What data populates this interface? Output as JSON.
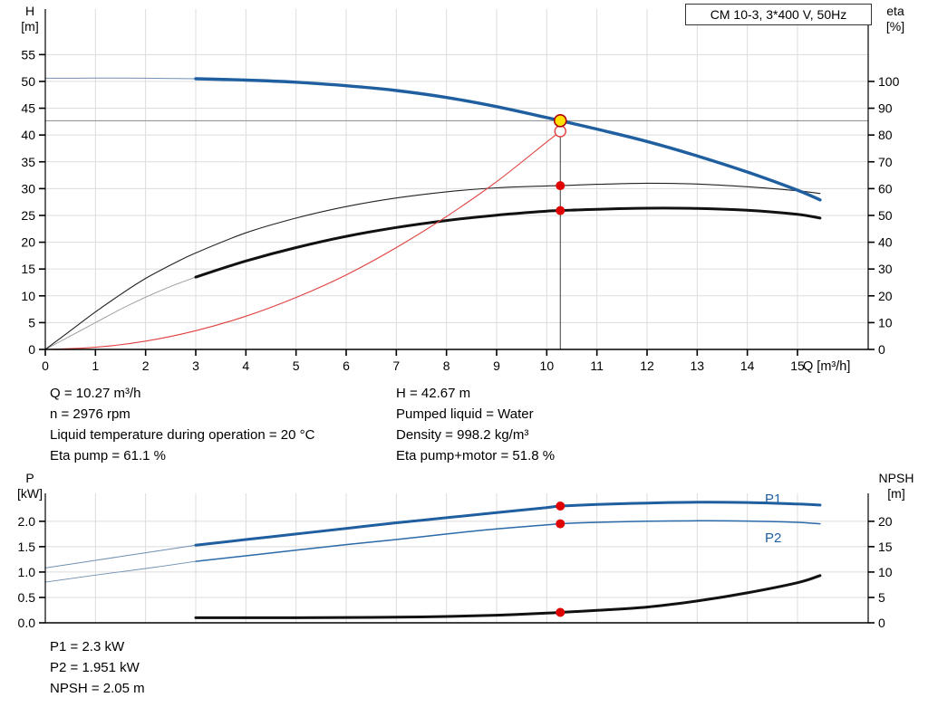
{
  "title_box": "CM 10-3, 3*400 V, 50Hz",
  "annotations": {
    "top_left": [
      "Q = 10.27 m³/h",
      "n = 2976 rpm",
      "Liquid temperature during operation = 20 °C",
      "Eta pump = 61.1 %"
    ],
    "top_right": [
      "H = 42.67 m",
      "Pumped liquid = Water",
      "Density = 998.2 kg/m³",
      "Eta pump+motor = 51.8 %"
    ],
    "bottom": [
      "P1 = 2.3 kW",
      "P2 = 1.951 kW",
      "NPSH = 2.05 m"
    ]
  },
  "chart_data": [
    {
      "type": "line",
      "name": "qh-eta-chart",
      "title": "CM 10-3, 3*400 V, 50Hz",
      "duty_point": {
        "Q_m3h": 10.27,
        "H_m": 42.67,
        "eta_pump_pct": 61.1,
        "eta_pump_motor_pct": 51.8
      },
      "x": {
        "label": "Q [m³/h]",
        "min": 0,
        "max": 16.41,
        "tick_values": [
          0,
          1,
          2,
          3,
          4,
          5,
          6,
          7,
          8,
          9,
          10,
          11,
          12,
          13,
          14,
          15
        ],
        "tick_labels": [
          "0",
          "1",
          "2",
          "3",
          "4",
          "5",
          "6",
          "7",
          "8",
          "9",
          "10",
          "11",
          "12",
          "13",
          "14",
          "15"
        ],
        "show_tick_labels": true
      },
      "y_left": {
        "label": "H [m]",
        "label_lines": [
          "H",
          "[m]"
        ],
        "min": 0,
        "max": 63.5,
        "tick_values": [
          0,
          5,
          10,
          15,
          20,
          25,
          30,
          35,
          40,
          45,
          50,
          55
        ],
        "tick_labels": [
          "0",
          "5",
          "10",
          "15",
          "20",
          "25",
          "30",
          "35",
          "40",
          "45",
          "50",
          "55"
        ]
      },
      "y_right": {
        "label": "eta [%]",
        "label_lines": [
          "eta",
          "[%]"
        ],
        "min": 0,
        "max": 127,
        "to_left_factor": 0.5,
        "tick_values": [
          0,
          10,
          20,
          30,
          40,
          50,
          60,
          70,
          80,
          90,
          100
        ],
        "tick_labels": [
          "0",
          "10",
          "20",
          "30",
          "40",
          "50",
          "60",
          "70",
          "80",
          "90",
          "100"
        ]
      },
      "grid": true,
      "ref_lines": [
        {
          "type": "h",
          "v": 42.67,
          "x1": 0,
          "x2": 16.41,
          "color": "#8a8a8a",
          "w": 1
        },
        {
          "type": "v",
          "q": 10.27,
          "v1": 0,
          "v2": 42.67,
          "color": "#3a3a3a",
          "w": 1
        }
      ],
      "series": [
        {
          "name": "eta-pump-motor-extension",
          "axis": "right",
          "color": "#9a9a9a",
          "w": 0.9,
          "pts": [
            [
              0,
              0
            ],
            [
              0.5,
              5
            ],
            [
              1,
              10
            ],
            [
              1.5,
              15
            ],
            [
              2,
              19.5
            ],
            [
              2.5,
              23.5
            ],
            [
              3,
              27
            ]
          ]
        },
        {
          "name": "eta-pump-curve",
          "axis": "right",
          "color": "#222222",
          "w": 1.1,
          "pts": [
            [
              0,
              0
            ],
            [
              0.5,
              7
            ],
            [
              1,
              14
            ],
            [
              1.5,
              20.5
            ],
            [
              2,
              26.5
            ],
            [
              2.5,
              31.5
            ],
            [
              3,
              36
            ],
            [
              4,
              43.5
            ],
            [
              5,
              49
            ],
            [
              6,
              53.3
            ],
            [
              7,
              56.5
            ],
            [
              8,
              58.8
            ],
            [
              9,
              60.3
            ],
            [
              10,
              61.0
            ],
            [
              10.27,
              61.1
            ],
            [
              11,
              61.6
            ],
            [
              12,
              62.0
            ],
            [
              13,
              61.7
            ],
            [
              14,
              60.7
            ],
            [
              15,
              59.2
            ],
            [
              15.45,
              58.2
            ]
          ]
        },
        {
          "name": "eta-pump-motor-curve",
          "axis": "right",
          "color": "#111111",
          "w": 3,
          "pts": [
            [
              3,
              27
            ],
            [
              4,
              33
            ],
            [
              5,
              38
            ],
            [
              6,
              42.2
            ],
            [
              7,
              45.5
            ],
            [
              8,
              48.1
            ],
            [
              9,
              50.1
            ],
            [
              10,
              51.6
            ],
            [
              10.27,
              51.8
            ],
            [
              11,
              52.3
            ],
            [
              12,
              52.7
            ],
            [
              13,
              52.6
            ],
            [
              14,
              51.9
            ],
            [
              15,
              50.4
            ],
            [
              15.45,
              49.0
            ]
          ]
        },
        {
          "name": "system-curve",
          "axis": "left",
          "color": "#e04040",
          "w": 1.1,
          "pts": [
            [
              0,
              0
            ],
            [
              1,
              0.4
            ],
            [
              2,
              1.55
            ],
            [
              3,
              3.5
            ],
            [
              4,
              6.2
            ],
            [
              5,
              9.7
            ],
            [
              6,
              13.9
            ],
            [
              7,
              19.0
            ],
            [
              8,
              24.8
            ],
            [
              9,
              31.3
            ],
            [
              10,
              38.7
            ],
            [
              10.27,
              40.7
            ]
          ]
        },
        {
          "name": "qh-curve-extension",
          "axis": "left",
          "color": "#6f8fb3",
          "w": 1,
          "pts": [
            [
              0,
              50.6
            ],
            [
              1,
              50.62
            ],
            [
              2,
              50.6
            ],
            [
              3,
              50.5
            ]
          ]
        },
        {
          "name": "qh-curve",
          "axis": "left",
          "color": "#1f5fa0",
          "w": 3.4,
          "pts": [
            [
              3,
              50.5
            ],
            [
              4,
              50.25
            ],
            [
              5,
              49.85
            ],
            [
              6,
              49.2
            ],
            [
              7,
              48.3
            ],
            [
              8,
              47.0
            ],
            [
              9,
              45.3
            ],
            [
              10,
              43.25
            ],
            [
              10.27,
              42.67
            ],
            [
              11,
              41.1
            ],
            [
              12,
              38.8
            ],
            [
              13,
              36.1
            ],
            [
              14,
              33.1
            ],
            [
              15,
              29.7
            ],
            [
              15.45,
              27.9
            ]
          ]
        }
      ],
      "markers": [
        {
          "name": "system-curve-intersection",
          "q": 10.27,
          "v": 40.7,
          "axis": "left",
          "r": 6,
          "fill": "#ffffff",
          "stroke": "#e04040",
          "sw": 1.4,
          "interactable": false
        },
        {
          "name": "duty-point",
          "q": 10.27,
          "v": 42.67,
          "axis": "left",
          "r": 6.5,
          "fill": "#ffe000",
          "stroke": "#b00000",
          "sw": 1.6,
          "interactable": true
        },
        {
          "name": "eta-pump-duty-dot",
          "q": 10.27,
          "v": 61.1,
          "axis": "right",
          "r": 5,
          "fill": "#e00000",
          "stroke": "none",
          "sw": 0,
          "interactable": false
        },
        {
          "name": "eta-pump-motor-duty-dot",
          "q": 10.27,
          "v": 51.8,
          "axis": "right",
          "r": 5,
          "fill": "#e00000",
          "stroke": "none",
          "sw": 0,
          "interactable": false
        }
      ],
      "inline_labels": []
    },
    {
      "type": "line",
      "name": "power-npsh-chart",
      "duty_point": {
        "P1_kW": 2.3,
        "P2_kW": 1.951,
        "NPSH_m": 2.05
      },
      "x": {
        "label": "",
        "min": 0,
        "max": 16.41,
        "tick_values": [
          0,
          1,
          2,
          3,
          4,
          5,
          6,
          7,
          8,
          9,
          10,
          11,
          12,
          13,
          14,
          15
        ],
        "tick_labels": [
          "0",
          "1",
          "2",
          "3",
          "4",
          "5",
          "6",
          "7",
          "8",
          "9",
          "10",
          "11",
          "12",
          "13",
          "14",
          "15"
        ],
        "show_tick_labels": false
      },
      "y_left": {
        "label": "P [kW]",
        "label_lines": [
          "P",
          "[kW]"
        ],
        "min": 0,
        "max": 2.55,
        "tick_values": [
          0,
          0.5,
          1,
          1.5,
          2
        ],
        "tick_labels": [
          "0.0",
          "0.5",
          "1.0",
          "1.5",
          "2.0"
        ]
      },
      "y_right": {
        "label": "NPSH [m]",
        "label_lines": [
          "NPSH",
          "[m]"
        ],
        "min": 0,
        "max": 25.5,
        "to_left_factor": 0.1,
        "tick_values": [
          0,
          5,
          10,
          15,
          20
        ],
        "tick_labels": [
          "0",
          "5",
          "10",
          "15",
          "20"
        ]
      },
      "grid": true,
      "ref_lines": [],
      "series": [
        {
          "name": "p1-extension",
          "axis": "left",
          "color": "#6f8fb3",
          "w": 1,
          "pts": [
            [
              0,
              1.08
            ],
            [
              1,
              1.23
            ],
            [
              2,
              1.38
            ],
            [
              3,
              1.53
            ]
          ]
        },
        {
          "name": "p2-extension",
          "axis": "left",
          "color": "#6f8fb3",
          "w": 0.9,
          "pts": [
            [
              0,
              0.8
            ],
            [
              1,
              0.94
            ],
            [
              2,
              1.07
            ],
            [
              3,
              1.21
            ]
          ]
        },
        {
          "name": "p2-curve",
          "axis": "left",
          "color": "#2a6aaa",
          "w": 1.5,
          "pts": [
            [
              3,
              1.21
            ],
            [
              4,
              1.32
            ],
            [
              5,
              1.43
            ],
            [
              6,
              1.54
            ],
            [
              7,
              1.64
            ],
            [
              8,
              1.75
            ],
            [
              9,
              1.85
            ],
            [
              10,
              1.93
            ],
            [
              10.27,
              1.951
            ],
            [
              11,
              1.98
            ],
            [
              12,
              2.0
            ],
            [
              13,
              2.01
            ],
            [
              14,
              2.005
            ],
            [
              15,
              1.98
            ],
            [
              15.45,
              1.95
            ]
          ]
        },
        {
          "name": "p1-curve",
          "axis": "left",
          "color": "#1f5fa0",
          "w": 3,
          "pts": [
            [
              3,
              1.53
            ],
            [
              4,
              1.64
            ],
            [
              5,
              1.75
            ],
            [
              6,
              1.86
            ],
            [
              7,
              1.97
            ],
            [
              8,
              2.07
            ],
            [
              9,
              2.17
            ],
            [
              10,
              2.27
            ],
            [
              10.27,
              2.3
            ],
            [
              11,
              2.33
            ],
            [
              12,
              2.36
            ],
            [
              13,
              2.375
            ],
            [
              14,
              2.37
            ],
            [
              15,
              2.34
            ],
            [
              15.45,
              2.32
            ]
          ]
        },
        {
          "name": "npsh-curve",
          "axis": "right",
          "color": "#111111",
          "w": 3,
          "pts": [
            [
              3,
              1.0
            ],
            [
              4,
              1.0
            ],
            [
              5,
              1.0
            ],
            [
              6,
              1.05
            ],
            [
              7,
              1.1
            ],
            [
              8,
              1.25
            ],
            [
              9,
              1.5
            ],
            [
              10,
              1.9
            ],
            [
              10.27,
              2.05
            ],
            [
              11,
              2.45
            ],
            [
              12,
              3.1
            ],
            [
              13,
              4.3
            ],
            [
              14,
              5.9
            ],
            [
              15,
              7.9
            ],
            [
              15.45,
              9.3
            ]
          ]
        }
      ],
      "markers": [
        {
          "name": "p1-duty-dot",
          "q": 10.27,
          "v": 2.3,
          "axis": "left",
          "r": 5,
          "fill": "#e00000",
          "stroke": "none",
          "sw": 0,
          "interactable": false
        },
        {
          "name": "p2-duty-dot",
          "q": 10.27,
          "v": 1.951,
          "axis": "left",
          "r": 5,
          "fill": "#e00000",
          "stroke": "none",
          "sw": 0,
          "interactable": false
        },
        {
          "name": "npsh-duty-dot",
          "q": 10.27,
          "v": 2.05,
          "axis": "right",
          "r": 5,
          "fill": "#e00000",
          "stroke": "none",
          "sw": 0,
          "interactable": false
        }
      ],
      "inline_labels": [
        {
          "text": "P1",
          "q": 14.35,
          "v": 2.44,
          "color": "#1f5fa0"
        },
        {
          "text": "P2",
          "q": 14.35,
          "v": 1.68,
          "color": "#1f5fa0"
        }
      ]
    }
  ]
}
